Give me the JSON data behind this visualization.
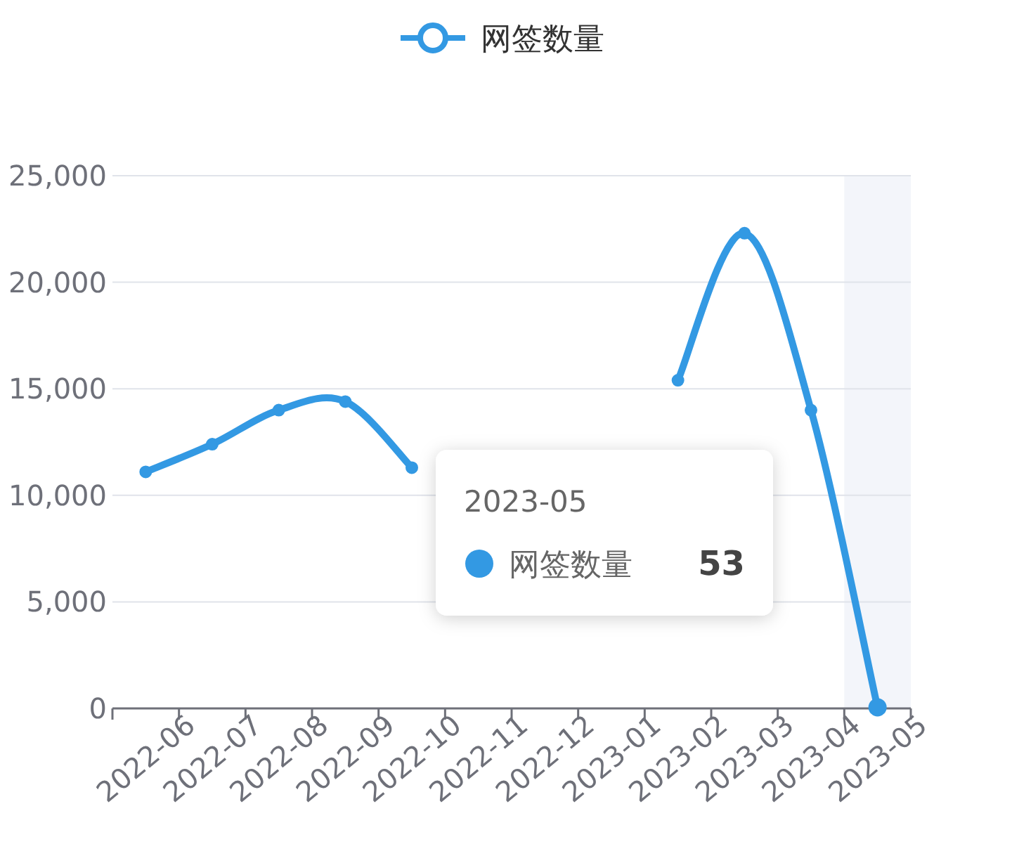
{
  "chart_data": {
    "type": "line",
    "categories": [
      "2022-06",
      "2022-07",
      "2022-08",
      "2022-09",
      "2022-10",
      "2022-11",
      "2022-12",
      "2023-01",
      "2023-02",
      "2023-03",
      "2023-04",
      "2023-05"
    ],
    "series": [
      {
        "name": "网签数量",
        "color": "#3399e3",
        "values": [
          11100,
          12400,
          14000,
          14400,
          11300,
          null,
          null,
          null,
          15400,
          22300,
          14000,
          53
        ]
      }
    ],
    "ylim": [
      0,
      25000
    ],
    "yticks": [
      {
        "value": 0,
        "label": "0"
      },
      {
        "value": 5000,
        "label": "5,000"
      },
      {
        "value": 10000,
        "label": "10,000"
      },
      {
        "value": 15000,
        "label": "15,000"
      },
      {
        "value": 20000,
        "label": "20,000"
      },
      {
        "value": 25000,
        "label": "25,000"
      }
    ],
    "grid": "y",
    "legend": "top",
    "marker": "circle",
    "bands": [
      {
        "axis": "x",
        "from": "2023-05",
        "to": "2023-05",
        "color": "#f3f5fa"
      }
    ],
    "annotations": [
      "2023-05",
      "网签数量",
      "53"
    ]
  }
}
